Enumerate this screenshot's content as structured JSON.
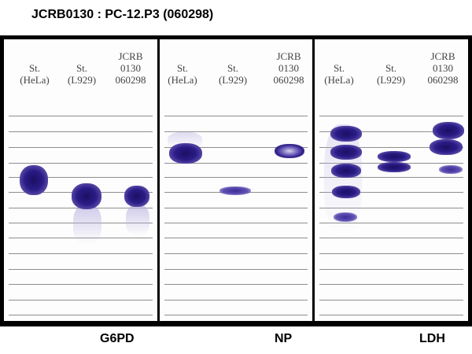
{
  "title": "JCRB0130 : PC-12.P3 (060298)",
  "panels": [
    {
      "enzyme": "G6PD",
      "lanes": [
        {
          "line1": "",
          "line2": "St.",
          "line3": "(HeLa)"
        },
        {
          "line1": "",
          "line2": "St.",
          "line3": "(L929)"
        },
        {
          "line1": "JCRB",
          "line2": "0130",
          "line3": "060298"
        }
      ]
    },
    {
      "enzyme": "NP",
      "lanes": [
        {
          "line1": "",
          "line2": "St.",
          "line3": "(HeLa)"
        },
        {
          "line1": "",
          "line2": "St.",
          "line3": "(L929)"
        },
        {
          "line1": "JCRB",
          "line2": "0130",
          "line3": "060298"
        }
      ]
    },
    {
      "enzyme": "LDH",
      "lanes": [
        {
          "line1": "",
          "line2": "St.",
          "line3": "(HeLa)"
        },
        {
          "line1": "",
          "line2": "St.",
          "line3": "(L929)"
        },
        {
          "line1": "JCRB",
          "line2": "0130",
          "line3": "060298"
        }
      ]
    }
  ],
  "colors": {
    "band": "#2a1c86",
    "frame": "#000000"
  }
}
